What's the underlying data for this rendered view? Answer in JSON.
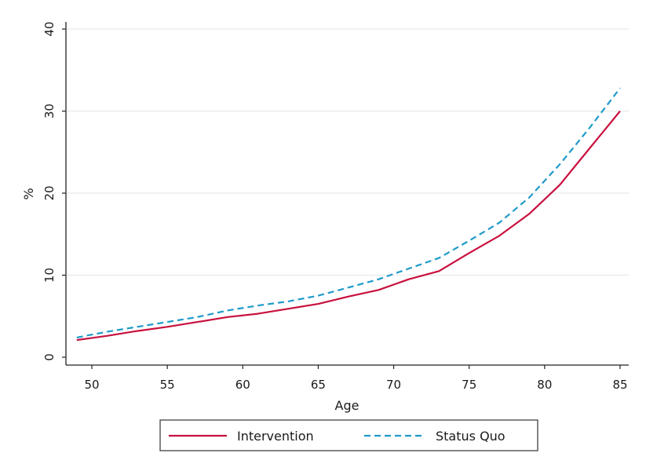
{
  "chart_data": {
    "type": "line",
    "title": "",
    "xlabel": "Age",
    "ylabel": "%",
    "xlim": [
      49,
      85
    ],
    "ylim": [
      0,
      40
    ],
    "x_ticks": [
      50,
      55,
      60,
      65,
      70,
      75,
      80,
      85
    ],
    "y_ticks": [
      0,
      10,
      20,
      30,
      40
    ],
    "grid": "horizontal",
    "legend_position": "bottom",
    "series": [
      {
        "name": "Intervention",
        "color": "#c8103e",
        "style": "solid",
        "x": [
          49,
          51,
          53,
          55,
          57,
          59,
          61,
          63,
          65,
          67,
          69,
          71,
          73,
          75,
          77,
          79,
          81,
          83,
          85
        ],
        "y": [
          2.1,
          2.6,
          3.2,
          3.7,
          4.3,
          4.9,
          5.3,
          5.9,
          6.5,
          7.4,
          8.2,
          9.5,
          10.5,
          12.7,
          14.8,
          17.5,
          21.0,
          25.5,
          30.0
        ]
      },
      {
        "name": "Status Quo",
        "color": "#1f9ac9",
        "style": "dashed",
        "x": [
          49,
          51,
          53,
          55,
          57,
          59,
          61,
          63,
          65,
          67,
          69,
          71,
          73,
          75,
          77,
          79,
          81,
          83,
          85
        ],
        "y": [
          2.4,
          3.1,
          3.7,
          4.3,
          4.9,
          5.7,
          6.3,
          6.8,
          7.5,
          8.5,
          9.5,
          10.8,
          12.1,
          14.2,
          16.4,
          19.5,
          23.5,
          28.0,
          32.8
        ]
      }
    ]
  }
}
